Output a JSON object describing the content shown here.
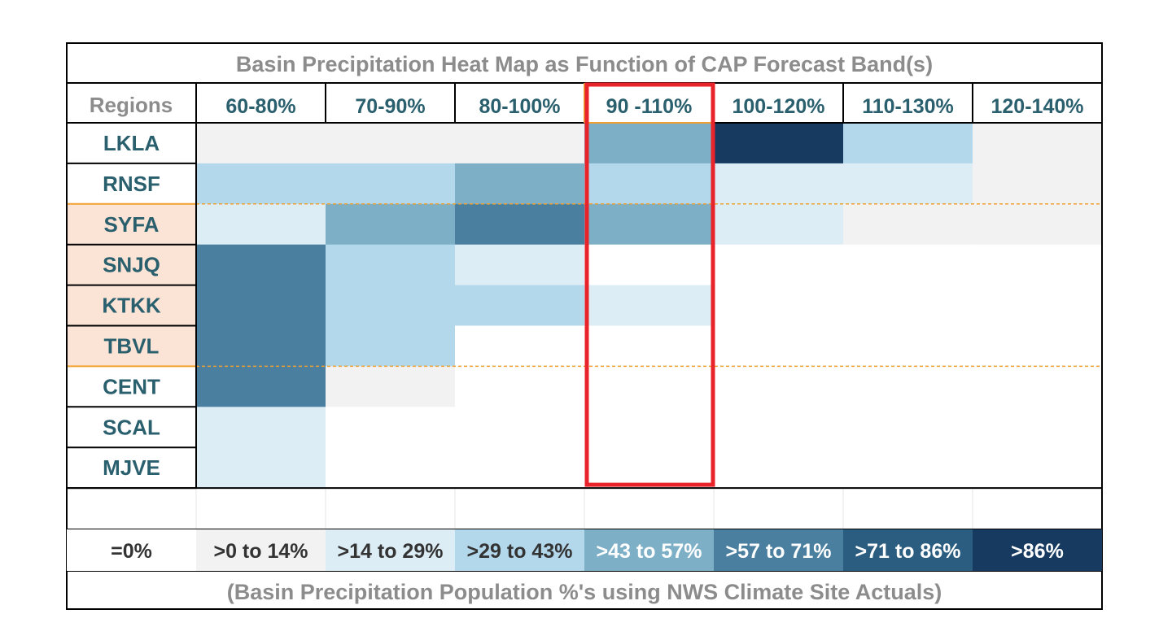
{
  "chart_data": {
    "type": "heatmap",
    "title": "Basin Precipitation Heat Map as Function of CAP Forecast Band(s)",
    "row_header": "Regions",
    "columns": [
      "60-80%",
      "70-90%",
      "80-100%",
      "90 -110%",
      "100-120%",
      "110-130%",
      "120-140%"
    ],
    "rows": [
      "LKLA",
      "RNSF",
      "SYFA",
      "SNJQ",
      "KTKK",
      "TBVL",
      "CENT",
      "SCAL",
      "MJVE"
    ],
    "highlighted_column": "90 -110%",
    "values": [
      [
        0,
        0,
        0,
        3,
        6,
        2,
        0
      ],
      [
        2,
        2,
        3,
        2,
        1,
        1,
        0
      ],
      [
        1,
        3,
        4,
        3,
        1,
        0,
        0
      ],
      [
        4,
        2,
        1,
        -1,
        -1,
        -1,
        -1
      ],
      [
        4,
        2,
        2,
        1,
        -1,
        -1,
        -1
      ],
      [
        4,
        2,
        -1,
        -1,
        -1,
        -1,
        -1
      ],
      [
        4,
        0,
        -1,
        -1,
        -1,
        -1,
        -1
      ],
      [
        1,
        -1,
        -1,
        -1,
        -1,
        -1,
        -1
      ],
      [
        1,
        -1,
        -1,
        -1,
        -1,
        -1,
        -1
      ]
    ],
    "legend": [
      {
        "label": "=0%",
        "color": "#ffffff"
      },
      {
        "label": ">0 to 14%",
        "color": "#f2f2f2"
      },
      {
        "label": ">14 to 29%",
        "color": "#ddedf5"
      },
      {
        "label": ">29 to 43%",
        "color": "#b4d8eb"
      },
      {
        "label": ">43 to 57%",
        "color": "#7dafc6"
      },
      {
        "label": ">57 to 71%",
        "color": "#4a7fa0"
      },
      {
        "label": ">71 to 86%",
        "color": "#2b5d80"
      },
      {
        "label": ">86%",
        "color": "#173a61"
      }
    ],
    "footnote": "(Basin Precipitation Population %'s using NWS Climate Site Actuals)"
  },
  "colors": {
    "text_teal": "#2a5f6e",
    "text_gray": "#8c8c8c",
    "highlight_red": "#e8232a",
    "group_orange": "#f0a030",
    "group_fill": "#fbe4d5"
  }
}
